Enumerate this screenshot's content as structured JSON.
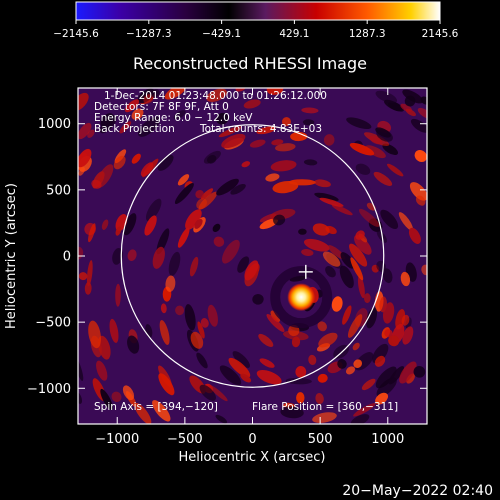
{
  "colorbar": {
    "tick_labels": [
      "−2145.6",
      "−1287.3",
      "−429.1",
      "429.1",
      "1287.3",
      "2145.6"
    ],
    "ticks": [
      -2145.6,
      -1287.3,
      -429.1,
      429.1,
      1287.3,
      2145.6
    ],
    "range": [
      -2145.6,
      2145.6
    ],
    "colormap": [
      "#1a1aff",
      "#3b00a8",
      "#2a0040",
      "#000000",
      "#5a1a60",
      "#c80000",
      "#ff5a00",
      "#ffd000",
      "#ffffff"
    ]
  },
  "title": "Reconstructed RHESSI Image",
  "annotations": {
    "time_range": "1-Dec-2014 01:23:48.000 to 01:26:12.000",
    "detectors": "Detectors: 7F 8F 9F, Att 0",
    "energy_range": "Energy Range: 6.0 − 12.0 keV",
    "method": "Back Projection",
    "total_counts": "Total counts: 4.83E+03",
    "spin_axis": "Spin Axis = [394,−120]",
    "flare_position": "Flare Position = [360,−311]"
  },
  "axes": {
    "xlabel": "Heliocentric X (arcsec)",
    "ylabel": "Heliocentric Y (arcsec)",
    "xlim": [
      -1290,
      1290
    ],
    "ylim": [
      -1270,
      1270
    ],
    "xticks": [
      -1000,
      -500,
      0,
      500,
      1000
    ],
    "xtick_labels": [
      "−1000",
      "−500",
      "0",
      "500",
      "1000"
    ],
    "yticks": [
      -1000,
      -500,
      0,
      500,
      1000
    ],
    "ytick_labels": [
      "−1000",
      "−500",
      "0",
      "500",
      "1000"
    ]
  },
  "solar_limb_radius_arcsec": 970,
  "spin_axis_marker": [
    394,
    -120
  ],
  "flare_source": [
    360,
    -311
  ],
  "timestamp": "20−May−2022 02:40"
}
